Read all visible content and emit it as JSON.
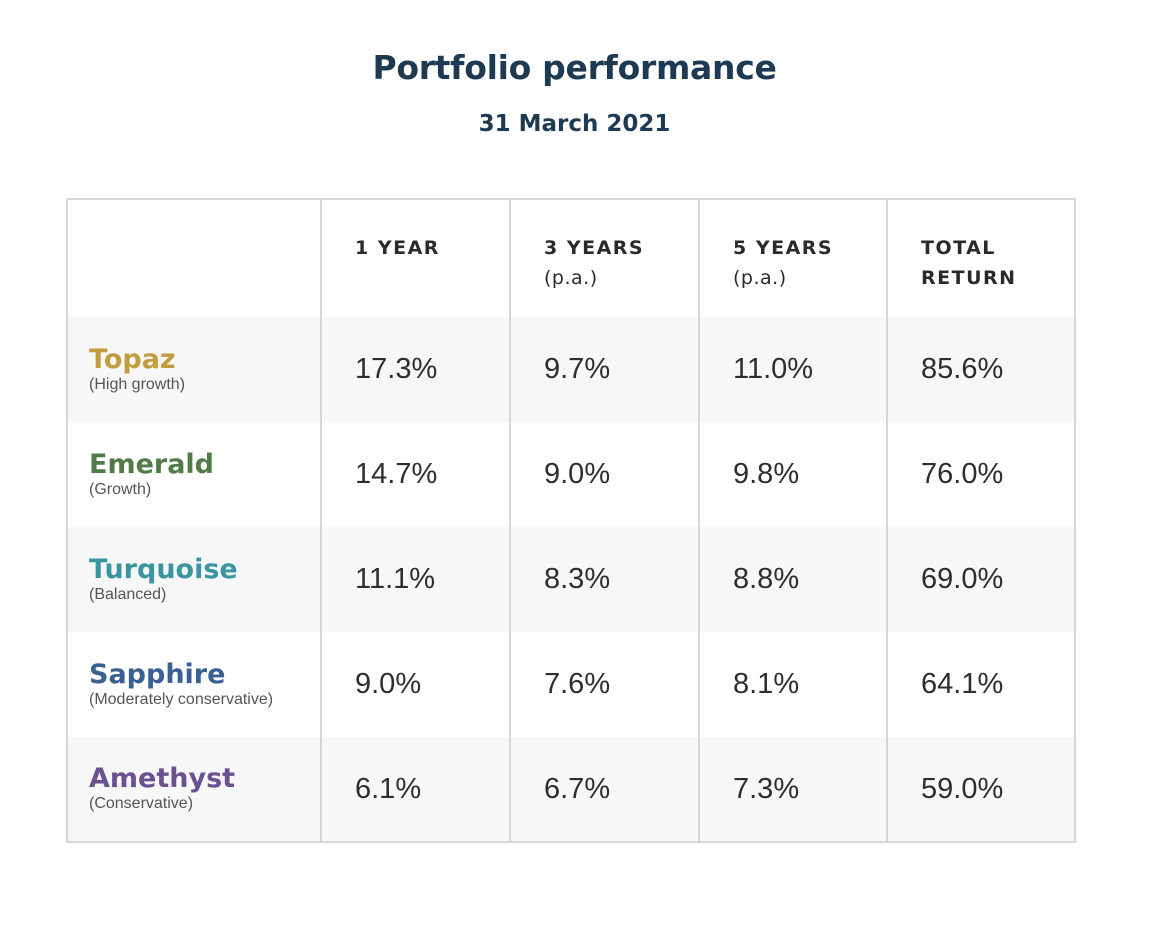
{
  "title": "Portfolio performance",
  "subtitle": "31 March 2021",
  "columns": [
    {
      "main": "1 YEAR",
      "sub": ""
    },
    {
      "main": "3 YEARS",
      "sub": "(p.a.)"
    },
    {
      "main": "5 YEARS",
      "sub": "(p.a.)"
    },
    {
      "main": "TOTAL",
      "sub": "RETURN"
    }
  ],
  "rows": [
    {
      "name": "Topaz",
      "desc": "(High growth)",
      "color": "#c29d3e",
      "values": [
        "17.3%",
        "9.7%",
        "11.0%",
        "85.6%"
      ]
    },
    {
      "name": "Emerald",
      "desc": "(Growth)",
      "color": "#527a47",
      "values": [
        "14.7%",
        "9.0%",
        "9.8%",
        "76.0%"
      ]
    },
    {
      "name": "Turquoise",
      "desc": "(Balanced)",
      "color": "#3a95a0",
      "values": [
        "11.1%",
        "8.3%",
        "8.8%",
        "69.0%"
      ]
    },
    {
      "name": "Sapphire",
      "desc": "(Moderately conservative)",
      "color": "#3a5f92",
      "values": [
        "9.0%",
        "7.6%",
        "8.1%",
        "64.1%"
      ]
    },
    {
      "name": "Amethyst",
      "desc": "(Conservative)",
      "color": "#685290",
      "values": [
        "6.1%",
        "6.7%",
        "7.3%",
        "59.0%"
      ]
    }
  ]
}
